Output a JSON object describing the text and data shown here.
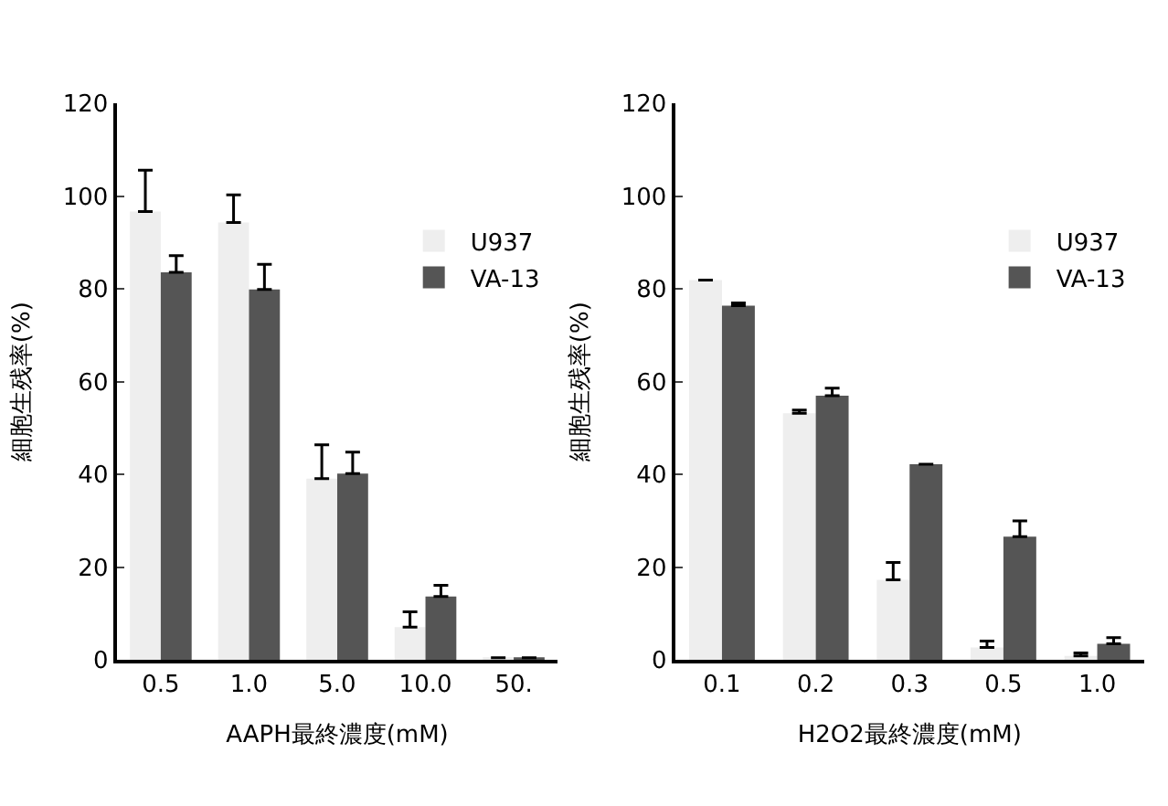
{
  "chart_data": [
    {
      "type": "bar",
      "categories": [
        "0.5",
        "1.0",
        "5.0",
        "10.0",
        "50."
      ],
      "xlabel": "AAPH最終濃度(mM)",
      "ylabel": "細胞生残率(%)",
      "ylim": [
        0,
        120
      ],
      "yticks": [
        0,
        20,
        40,
        60,
        80,
        100,
        120
      ],
      "legend": "right",
      "series": [
        {
          "name": "U937",
          "color": "#eeeeee",
          "values": [
            96.7,
            94.3,
            39.1,
            7.1,
            0.5
          ],
          "errors": [
            [
              96.7,
              105.6
            ],
            [
              94.3,
              100.3
            ],
            [
              39.1,
              46.4
            ],
            [
              7.1,
              10.4
            ],
            null
          ]
        },
        {
          "name": "VA-13",
          "color": "#555555",
          "values": [
            83.6,
            79.9,
            40.2,
            13.7,
            0.5
          ],
          "errors": [
            [
              83.6,
              87.2
            ],
            [
              79.9,
              85.3
            ],
            [
              40.2,
              44.8
            ],
            [
              13.7,
              16.1
            ],
            null
          ]
        }
      ]
    },
    {
      "type": "bar",
      "categories": [
        "0.1",
        "0.2",
        "0.3",
        "0.5",
        "1.0"
      ],
      "xlabel": "H2O2最終濃度(mM)",
      "ylabel": "細胞生残率(%)",
      "ylim": [
        0,
        120
      ],
      "yticks": [
        0,
        20,
        40,
        60,
        80,
        100,
        120
      ],
      "legend": "right",
      "series": [
        {
          "name": "U937",
          "color": "#eeeeee",
          "values": [
            81.9,
            53.2,
            17.3,
            2.7,
            0.9
          ],
          "errors": [
            null,
            [
              53.2,
              53.9
            ],
            [
              17.3,
              21.0
            ],
            [
              2.7,
              4.1
            ],
            [
              0.9,
              1.5
            ]
          ]
        },
        {
          "name": "VA-13",
          "color": "#555555",
          "values": [
            76.4,
            57.0,
            42.2,
            26.6,
            3.5
          ],
          "errors": [
            [
              76.4,
              77.0
            ],
            [
              57.0,
              58.6
            ],
            null,
            [
              26.6,
              30.0
            ],
            [
              3.5,
              4.8
            ]
          ]
        }
      ]
    }
  ]
}
